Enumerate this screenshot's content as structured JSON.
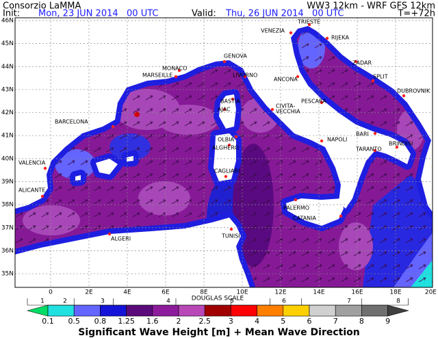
{
  "header": {
    "source": "Consorzio LaMMA",
    "model": "WW3 12km - WRF GFS 12km",
    "init_label": "Init:",
    "init": "Mon, 23 JUN 2014   00 UTC",
    "valid_label": "Valid:",
    "valid": "Thu, 26 JUN 2014   00 UTC",
    "lead": "T=+72h"
  },
  "map": {
    "lat_labels": [
      "46N",
      "45N",
      "44N",
      "43N",
      "42N",
      "41N",
      "40N",
      "39N",
      "38N",
      "37N",
      "36N",
      "35N"
    ],
    "lon_labels": [
      "0",
      "2E",
      "4E",
      "6E",
      "8E",
      "10E",
      "12E",
      "14E",
      "16E",
      "18E",
      "20E"
    ],
    "cities": [
      "VENEZIA",
      "TRIESTE",
      "RIJEKA",
      "ZADAR",
      "SPLIT",
      "DUBROVNIK",
      "ANCONA",
      "PESCARA",
      "CIVITA-",
      "VECCHIA",
      "LIVORNO",
      "GENOVA",
      "MONACO",
      "MARSEILLE",
      "BASTIA",
      "AJAC",
      "OLBIA",
      "ALGHERO",
      "CAGLIARI",
      "NAPOLI",
      "BARI",
      "BRINDISI",
      "TARANTO",
      "BARCELONA",
      "VALENCIA",
      "ALICANTE",
      "PALERMO",
      "CATANIA",
      "TUNISI",
      "ALGERI"
    ]
  },
  "legend": {
    "douglas_title": "DOUGLAS SCALE",
    "douglas": [
      1,
      2,
      3,
      4,
      5,
      6,
      7,
      8
    ],
    "values": [
      0.1,
      0.5,
      0.8,
      1.25,
      1.6,
      2,
      2.5,
      3,
      4,
      5,
      6,
      7,
      8,
      9
    ],
    "caption": "Significant Wave Height [m] + Mean Wave Direction"
  }
}
